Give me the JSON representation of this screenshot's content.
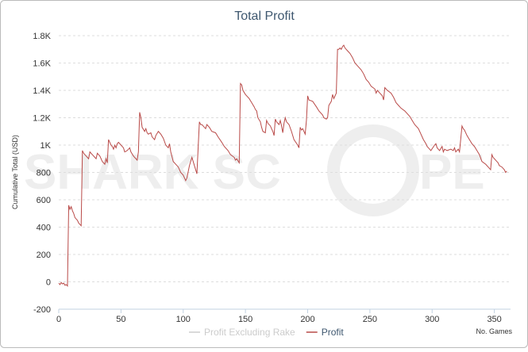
{
  "chart_data": {
    "type": "line",
    "title": "Total Profit",
    "y_label": "Cumulative Total (USD)",
    "x_label": "No. Games",
    "watermark": [
      "SHARK SC",
      "PE"
    ],
    "xlim": [
      0,
      363
    ],
    "xticks": [
      0,
      50,
      100,
      150,
      200,
      250,
      300,
      350
    ],
    "ylim": [
      -200,
      1800
    ],
    "yticks": [
      -200,
      0,
      200,
      400,
      600,
      800,
      {
        "value": 1000,
        "label": "1K"
      },
      {
        "value": 1200,
        "label": "1.2K"
      },
      {
        "value": 1400,
        "label": "1.4K"
      },
      {
        "value": 1600,
        "label": "1.6K"
      },
      {
        "value": 1800,
        "label": "1.8K"
      }
    ],
    "grid": true,
    "legend": "bottom",
    "x": [
      0,
      1,
      2,
      3,
      4,
      5,
      6,
      7,
      8,
      9,
      10,
      11,
      12,
      13,
      14,
      15,
      16,
      17,
      18,
      19,
      20,
      22,
      24,
      25,
      27,
      29,
      30,
      31,
      33,
      35,
      37,
      38,
      39,
      40,
      41,
      42,
      43,
      44,
      45,
      46,
      47,
      48,
      50,
      52,
      53,
      55,
      57,
      58,
      60,
      62,
      63,
      64,
      65,
      66,
      67,
      69,
      70,
      71,
      72,
      74,
      75,
      77,
      78,
      80,
      82,
      84,
      86,
      88,
      89,
      90,
      92,
      94,
      96,
      98,
      100,
      101,
      102,
      103,
      105,
      107,
      108,
      110,
      111,
      113,
      114,
      115,
      116,
      118,
      119,
      121,
      123,
      126,
      128,
      131,
      133,
      136,
      138,
      141,
      142,
      143,
      145,
      146,
      147,
      148,
      150,
      153,
      155,
      157,
      158,
      159,
      160,
      162,
      163,
      164,
      166,
      167,
      168,
      170,
      171,
      172,
      173,
      174,
      175,
      177,
      178,
      179,
      180,
      181,
      182,
      183,
      185,
      187,
      189,
      192,
      193,
      194,
      195,
      196,
      198,
      199,
      200,
      201,
      204,
      207,
      209,
      212,
      213,
      215,
      216,
      217,
      219,
      220,
      221,
      223,
      224,
      225,
      226,
      227,
      228,
      229,
      230,
      232,
      234,
      236,
      238,
      240,
      243,
      245,
      247,
      249,
      251,
      254,
      255,
      256,
      258,
      260,
      261,
      262,
      264,
      267,
      269,
      271,
      273,
      275,
      278,
      280,
      282,
      284,
      286,
      289,
      291,
      293,
      295,
      296,
      297,
      299,
      302,
      303,
      304,
      306,
      308,
      309,
      310,
      312,
      315,
      317,
      318,
      319,
      321,
      322,
      324,
      325,
      326,
      328,
      330,
      332,
      334,
      336,
      338,
      340,
      343,
      345,
      346,
      347,
      348,
      349,
      352,
      353,
      354,
      356,
      358,
      359,
      360
    ],
    "series": [
      {
        "name": "Profit Excluding Rake",
        "color": "#cccccc",
        "visible": false
      },
      {
        "name": "Profit",
        "color": "#b94a48",
        "visible": true,
        "values": [
          -10,
          -20,
          -5,
          -15,
          -10,
          -25,
          -20,
          -30,
          560,
          530,
          550,
          520,
          500,
          470,
          460,
          450,
          430,
          420,
          410,
          960,
          940,
          920,
          900,
          950,
          930,
          910,
          900,
          940,
          920,
          880,
          860,
          900,
          870,
          1040,
          1020,
          1000,
          990,
          970,
          1000,
          980,
          1010,
          1020,
          1000,
          980,
          950,
          960,
          980,
          950,
          920,
          900,
          890,
          950,
          1240,
          1200,
          1130,
          1100,
          1120,
          1090,
          1080,
          1090,
          1060,
          1040,
          1070,
          1100,
          1080,
          1050,
          1000,
          980,
          1010,
          950,
          880,
          860,
          840,
          800,
          780,
          760,
          740,
          760,
          850,
          910,
          880,
          820,
          790,
          1170,
          1150,
          1150,
          1140,
          1120,
          1150,
          1130,
          1100,
          1090,
          1060,
          1020,
          990,
          960,
          930,
          910,
          890,
          900,
          870,
          1450,
          1440,
          1400,
          1370,
          1340,
          1310,
          1280,
          1260,
          1250,
          1200,
          1170,
          1130,
          1100,
          1090,
          1180,
          1160,
          1140,
          1120,
          1100,
          1070,
          1190,
          1170,
          1150,
          1180,
          1140,
          1090,
          1160,
          1200,
          1170,
          1150,
          1100,
          1040,
          1000,
          980,
          1130,
          1110,
          1120,
          1080,
          1180,
          1360,
          1330,
          1320,
          1280,
          1250,
          1220,
          1200,
          1190,
          1200,
          1290,
          1320,
          1370,
          1340,
          1380,
          1700,
          1700,
          1710,
          1700,
          1720,
          1730,
          1710,
          1690,
          1670,
          1640,
          1600,
          1580,
          1550,
          1520,
          1480,
          1460,
          1430,
          1410,
          1380,
          1400,
          1380,
          1360,
          1330,
          1420,
          1400,
          1380,
          1350,
          1310,
          1290,
          1270,
          1250,
          1230,
          1210,
          1180,
          1150,
          1120,
          1080,
          1040,
          1010,
          990,
          980,
          960,
          1000,
          1010,
          980,
          960,
          990,
          950,
          970,
          960,
          970,
          960,
          980,
          950,
          970,
          950,
          1140,
          1120,
          1110,
          1070,
          1040,
          1010,
          990,
          960,
          930,
          880,
          860,
          840,
          830,
          820,
          930,
          910,
          880,
          870,
          850,
          840,
          820,
          800,
          810
        ]
      }
    ]
  }
}
